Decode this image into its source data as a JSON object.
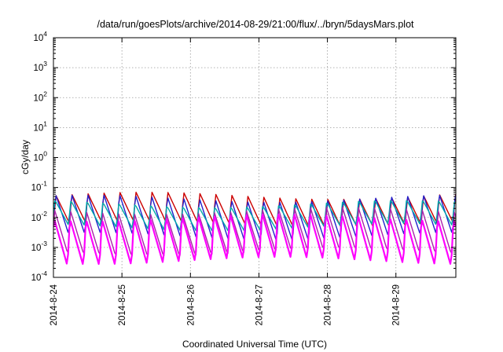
{
  "chart_data": {
    "type": "line",
    "title": "/data/run/goesPlots/archive/2014-08-29/21:00/flux/../bryn/5daysMars.plot",
    "xlabel": "Coordinated Universal Time (UTC)",
    "ylabel": "cGy/day",
    "y_scale": "log",
    "ylim": [
      0.0001,
      10000
    ],
    "y_ticks": [
      {
        "base": "10",
        "exp": "-4",
        "value": 0.0001
      },
      {
        "base": "10",
        "exp": "-3",
        "value": 0.001
      },
      {
        "base": "10",
        "exp": "-2",
        "value": 0.01
      },
      {
        "base": "10",
        "exp": "-1",
        "value": 0.1
      },
      {
        "base": "10",
        "exp": "0",
        "value": 1
      },
      {
        "base": "10",
        "exp": "1",
        "value": 10
      },
      {
        "base": "10",
        "exp": "2",
        "value": 100
      },
      {
        "base": "10",
        "exp": "3",
        "value": 1000
      },
      {
        "base": "10",
        "exp": "4",
        "value": 10000
      }
    ],
    "x_ticks": [
      "2014-8-24",
      "2014-8-25",
      "2014-8-26",
      "2014-8-27",
      "2014-8-28",
      "2014-8-29"
    ],
    "xlim": [
      "2014-08-24 00:00",
      "2014-08-29 21:00"
    ],
    "grid": true,
    "oscillation_period_hours": 5.6,
    "series": [
      {
        "color": "#cc0000",
        "peak": 0.055,
        "trough": 0.006
      },
      {
        "color": "#2222cc",
        "peak": 0.05,
        "trough": 0.002
      },
      {
        "color": "#00aaaa",
        "peak": 0.03,
        "trough": 0.0045
      },
      {
        "color": "#aa22aa",
        "peak": 0.018,
        "trough": 0.0006
      },
      {
        "color": "#ff00ff",
        "peak": 0.012,
        "trough": 0.0003
      }
    ]
  }
}
